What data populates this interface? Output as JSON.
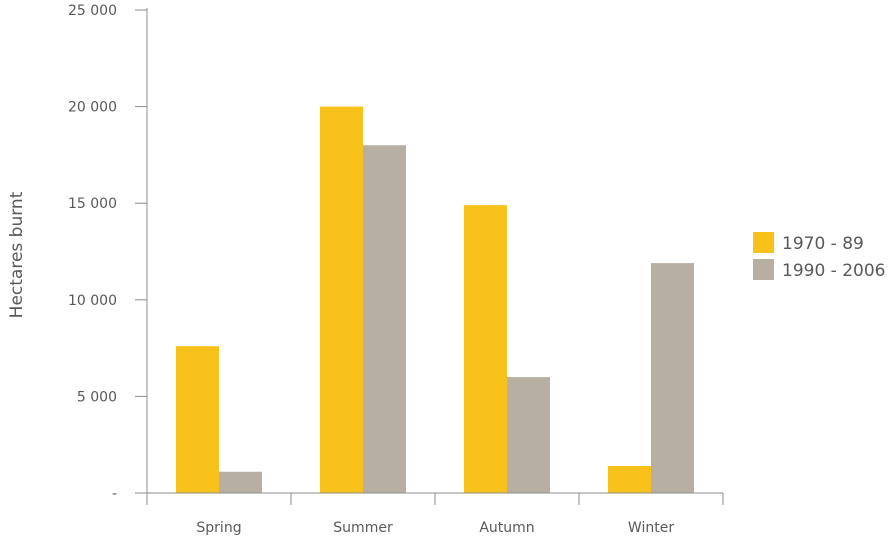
{
  "chart_data": {
    "type": "bar",
    "categories": [
      "Spring",
      "Summer",
      "Autumn",
      "Winter"
    ],
    "series": [
      {
        "name": "1970 - 89",
        "values": [
          7600,
          20000,
          14900,
          1400
        ],
        "color": "#f9c21b"
      },
      {
        "name": "1990 - 2006",
        "values": [
          1100,
          18000,
          6000,
          11900
        ],
        "color": "#b7afa2"
      }
    ],
    "ylabel": "Hectares burnt",
    "ylim": [
      0,
      25000
    ],
    "yticks": [
      0,
      5000,
      10000,
      15000,
      20000,
      25000
    ],
    "ytick_labels": [
      "-",
      "5 000",
      "10 000",
      "15 000",
      "20 000",
      "25 000"
    ],
    "grid": false,
    "legend_position": "right"
  }
}
